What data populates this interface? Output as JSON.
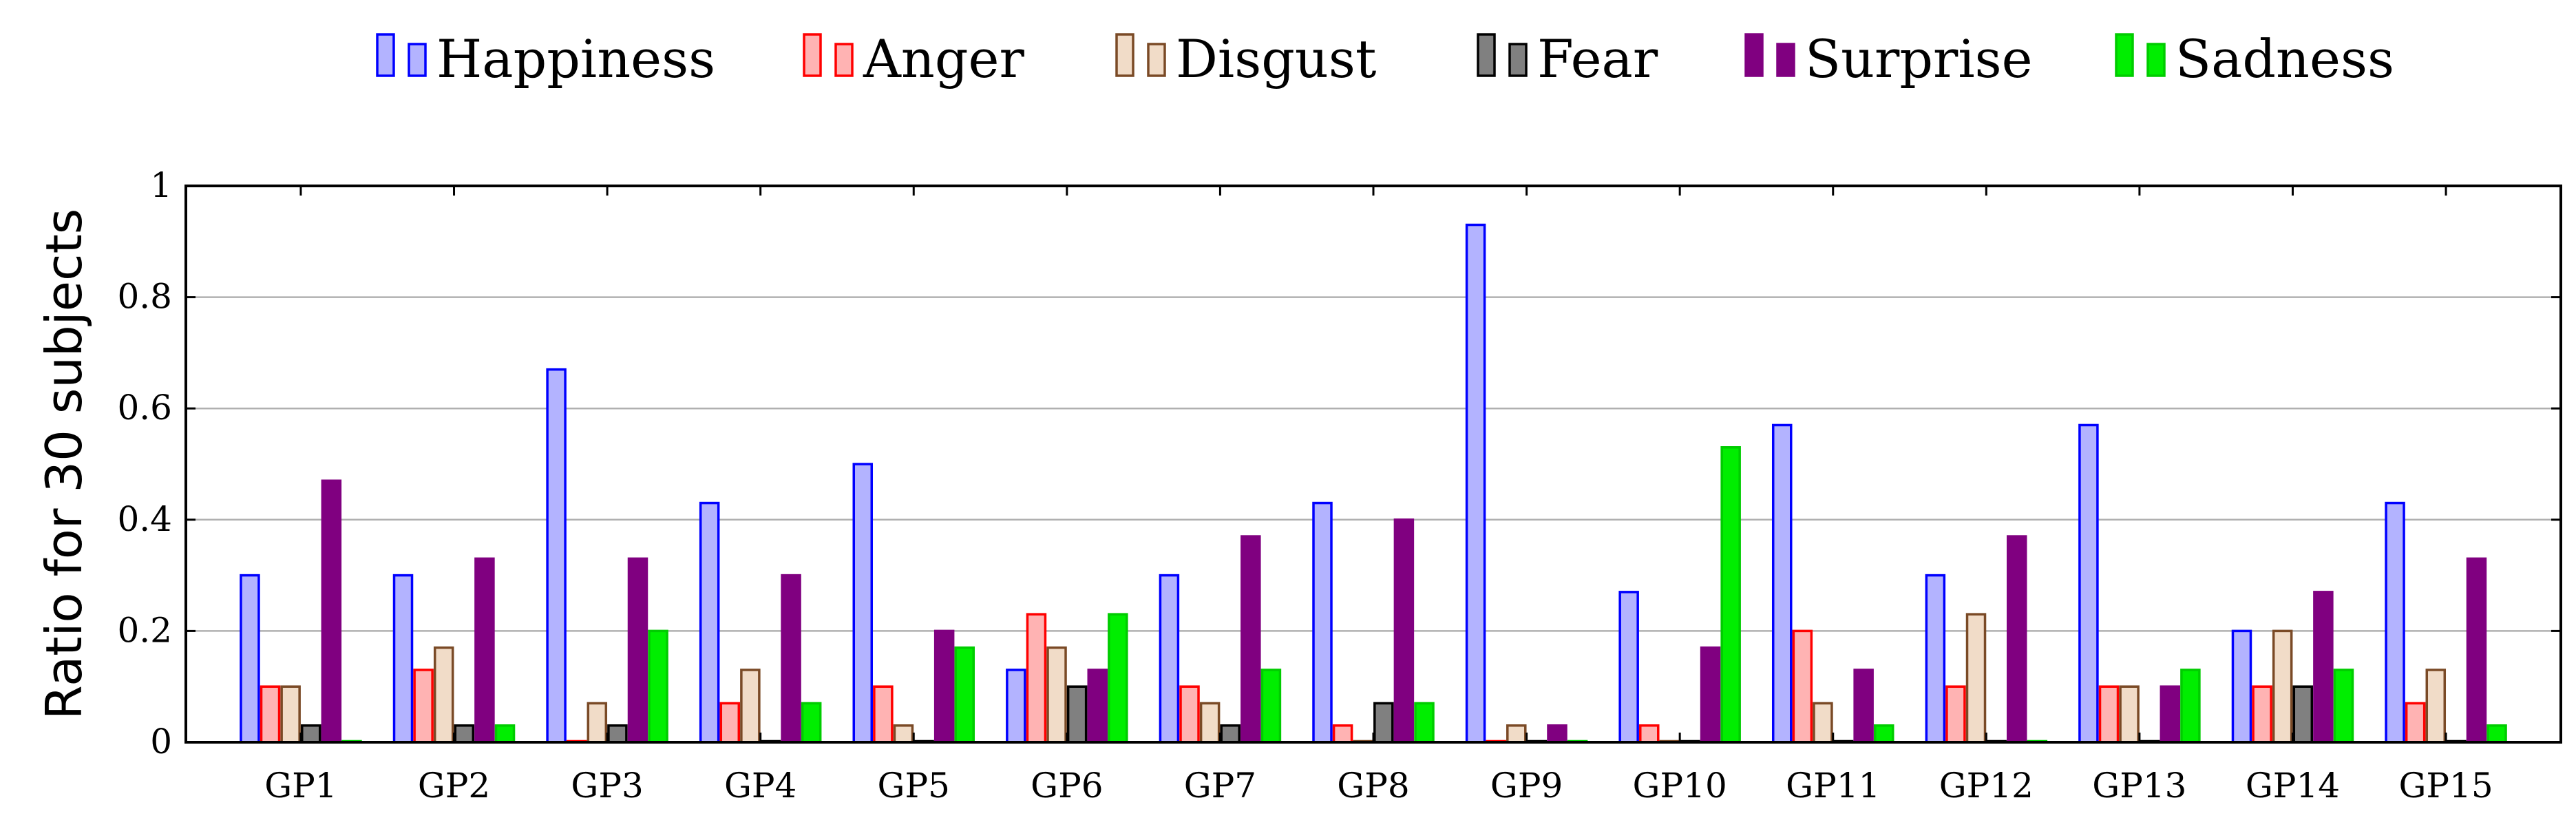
{
  "chart_data": {
    "type": "bar",
    "categories": [
      "GP1",
      "GP2",
      "GP3",
      "GP4",
      "GP5",
      "GP6",
      "GP7",
      "GP8",
      "GP9",
      "GP10",
      "GP11",
      "GP12",
      "GP13",
      "GP14",
      "GP15"
    ],
    "series": [
      {
        "name": "Happiness",
        "fill": "#b3b3ff",
        "stroke": "#0000ff",
        "values": [
          0.3,
          0.3,
          0.67,
          0.43,
          0.5,
          0.13,
          0.3,
          0.43,
          0.93,
          0.27,
          0.57,
          0.3,
          0.57,
          0.2,
          0.43
        ]
      },
      {
        "name": "Anger",
        "fill": "#ffb3b3",
        "stroke": "#ff0000",
        "values": [
          0.1,
          0.13,
          0.0,
          0.07,
          0.1,
          0.23,
          0.1,
          0.03,
          0.0,
          0.03,
          0.2,
          0.1,
          0.1,
          0.1,
          0.07
        ]
      },
      {
        "name": "Disgust",
        "fill": "#f1dcc8",
        "stroke": "#7a4a26",
        "values": [
          0.1,
          0.17,
          0.07,
          0.13,
          0.03,
          0.17,
          0.07,
          0.0,
          0.03,
          0.0,
          0.07,
          0.23,
          0.1,
          0.2,
          0.13
        ]
      },
      {
        "name": "Fear",
        "fill": "#808080",
        "stroke": "#000000",
        "values": [
          0.03,
          0.03,
          0.03,
          0.0,
          0.0,
          0.1,
          0.03,
          0.07,
          0.0,
          0.0,
          0.0,
          0.0,
          0.0,
          0.1,
          0.0
        ]
      },
      {
        "name": "Surprise",
        "fill": "#800080",
        "stroke": "#800080",
        "values": [
          0.47,
          0.33,
          0.33,
          0.3,
          0.2,
          0.13,
          0.37,
          0.4,
          0.03,
          0.17,
          0.13,
          0.37,
          0.1,
          0.27,
          0.33
        ]
      },
      {
        "name": "Sadness",
        "fill": "#00ee00",
        "stroke": "#00cc00",
        "values": [
          0.0,
          0.03,
          0.2,
          0.07,
          0.17,
          0.23,
          0.13,
          0.07,
          0.0,
          0.53,
          0.03,
          0.0,
          0.13,
          0.13,
          0.03
        ]
      }
    ],
    "ylabel": "Ratio for 30 subjects",
    "xlabel": "",
    "ylim": [
      0,
      1
    ],
    "yticks": [
      "0",
      "0.2",
      "0.4",
      "0.6",
      "0.8",
      "1"
    ],
    "grid": "horizontal",
    "legend_position": "top"
  }
}
